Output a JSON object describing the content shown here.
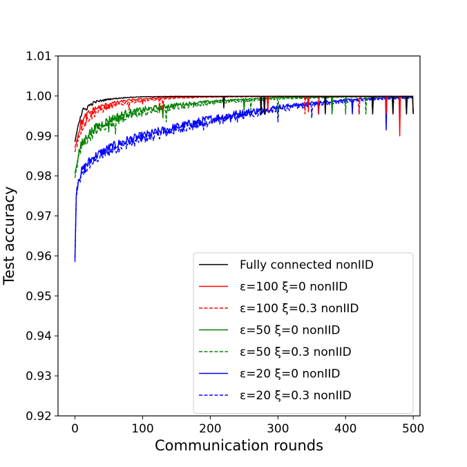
{
  "chart_data": {
    "type": "line",
    "title": "",
    "xlabel": "Communication rounds",
    "ylabel": "Test accuracy",
    "xlim": [
      -25,
      510
    ],
    "ylim": [
      0.92,
      1.01
    ],
    "xticks": [
      0,
      100,
      200,
      300,
      400,
      500
    ],
    "yticks": [
      0.92,
      0.93,
      0.94,
      0.95,
      0.96,
      0.97,
      0.98,
      0.99,
      1.0,
      1.01
    ],
    "ytick_labels": [
      "0.92",
      "0.93",
      "0.94",
      "0.95",
      "0.96",
      "0.97",
      "0.98",
      "0.99",
      "1.00",
      "1.01"
    ],
    "grid": false,
    "legend_position": "bottom-right",
    "series": [
      {
        "name": "Fully connected nonIID",
        "color": "#000000",
        "dash": "solid",
        "x": [
          0,
          5,
          10,
          20,
          30,
          50,
          75,
          100,
          150,
          200,
          250,
          300,
          400,
          500
        ],
        "y": [
          0.9885,
          0.9935,
          0.9958,
          0.9975,
          0.9985,
          0.9992,
          0.9996,
          0.9998,
          0.9999,
          0.9999,
          0.9999,
          0.9999,
          0.9999,
          0.9999
        ],
        "dips": [
          [
            220,
            0.997
          ],
          [
            275,
            0.9955
          ],
          [
            280,
            0.9955
          ],
          [
            370,
            0.9955
          ],
          [
            440,
            0.9955
          ],
          [
            470,
            0.9955
          ],
          [
            490,
            0.9955
          ],
          [
            500,
            0.9955
          ]
        ]
      },
      {
        "name": "ε=100 ξ=0 nonIID",
        "color": "#ff0000",
        "dash": "solid",
        "x": [
          0,
          5,
          10,
          20,
          30,
          50,
          75,
          100,
          150,
          200,
          250,
          300,
          400,
          500
        ],
        "y": [
          0.987,
          0.991,
          0.9935,
          0.9955,
          0.9968,
          0.998,
          0.9988,
          0.9993,
          0.9997,
          0.9998,
          0.9999,
          0.9999,
          0.9999,
          0.9999
        ],
        "dips": [
          [
            50,
            0.997
          ],
          [
            100,
            0.998
          ],
          [
            285,
            0.996
          ],
          [
            345,
            0.996
          ],
          [
            460,
            0.9955
          ],
          [
            480,
            0.99
          ],
          [
            500,
            0.9955
          ]
        ]
      },
      {
        "name": "ε=100 ξ=0.3 nonIID",
        "color": "#ff0000",
        "dash": "dashed",
        "x": [
          0,
          5,
          10,
          20,
          30,
          50,
          75,
          100,
          150,
          200,
          250,
          300,
          400,
          500
        ],
        "y": [
          0.986,
          0.9895,
          0.992,
          0.9945,
          0.9958,
          0.9972,
          0.9982,
          0.9988,
          0.9995,
          0.9997,
          0.9998,
          0.9999,
          0.9999,
          0.9999
        ],
        "dips": [
          [
            80,
            0.9965
          ],
          [
            125,
            0.9965
          ],
          [
            130,
            0.9965
          ],
          [
            280,
            0.9955
          ],
          [
            340,
            0.9955
          ],
          [
            360,
            0.9955
          ],
          [
            420,
            0.9955
          ],
          [
            500,
            0.9955
          ]
        ]
      },
      {
        "name": "ε=50 ξ=0 nonIID",
        "color": "#008000",
        "dash": "solid",
        "x": [
          0,
          5,
          10,
          20,
          30,
          50,
          75,
          100,
          150,
          200,
          250,
          300,
          400,
          500
        ],
        "y": [
          0.9805,
          0.9855,
          0.988,
          0.9905,
          0.992,
          0.994,
          0.9955,
          0.9965,
          0.9978,
          0.9986,
          0.9992,
          0.9996,
          0.9998,
          0.9999
        ],
        "dips": [
          [
            50,
            0.991
          ],
          [
            130,
            0.9945
          ],
          [
            250,
            0.9965
          ],
          [
            280,
            0.9965
          ],
          [
            380,
            0.9955
          ],
          [
            440,
            0.9955
          ],
          [
            480,
            0.9955
          ]
        ]
      },
      {
        "name": "ε=50 ξ=0.3 nonIID",
        "color": "#008000",
        "dash": "dashed",
        "x": [
          0,
          5,
          10,
          20,
          30,
          50,
          75,
          100,
          150,
          200,
          250,
          300,
          400,
          500
        ],
        "y": [
          0.9795,
          0.9845,
          0.987,
          0.9895,
          0.991,
          0.993,
          0.9947,
          0.9958,
          0.9972,
          0.9982,
          0.9988,
          0.9993,
          0.9997,
          0.9998
        ],
        "dips": [
          [
            60,
            0.9905
          ],
          [
            135,
            0.9935
          ],
          [
            260,
            0.9965
          ],
          [
            300,
            0.9955
          ],
          [
            400,
            0.9955
          ],
          [
            430,
            0.9955
          ],
          [
            500,
            0.9955
          ]
        ]
      },
      {
        "name": "ε=20 ξ=0 nonIID",
        "color": "#0000ff",
        "dash": "solid",
        "x": [
          0,
          2,
          5,
          10,
          20,
          30,
          50,
          75,
          100,
          150,
          200,
          250,
          300,
          350,
          400,
          450,
          500
        ],
        "y": [
          0.9585,
          0.976,
          0.979,
          0.9812,
          0.9835,
          0.985,
          0.987,
          0.9888,
          0.99,
          0.9922,
          0.9942,
          0.9958,
          0.9972,
          0.9982,
          0.999,
          0.9995,
          0.9997
        ],
        "dips": [
          [
            180,
            0.992
          ],
          [
            230,
            0.9935
          ],
          [
            360,
            0.9955
          ],
          [
            410,
            0.9955
          ],
          [
            460,
            0.9915
          ],
          [
            490,
            0.9955
          ]
        ]
      },
      {
        "name": "ε=20 ξ=0.3 nonIID",
        "color": "#0000ff",
        "dash": "dashed",
        "x": [
          0,
          2,
          5,
          10,
          20,
          30,
          50,
          75,
          100,
          150,
          200,
          250,
          300,
          350,
          400,
          450,
          500
        ],
        "y": [
          0.9595,
          0.975,
          0.978,
          0.98,
          0.9825,
          0.984,
          0.986,
          0.9878,
          0.9892,
          0.9915,
          0.9935,
          0.9952,
          0.9966,
          0.9978,
          0.9986,
          0.9992,
          0.9995
        ],
        "dips": [
          [
            190,
            0.9915
          ],
          [
            240,
            0.9935
          ],
          [
            300,
            0.9935
          ],
          [
            350,
            0.9945
          ],
          [
            420,
            0.9955
          ],
          [
            470,
            0.9955
          ]
        ]
      }
    ]
  }
}
